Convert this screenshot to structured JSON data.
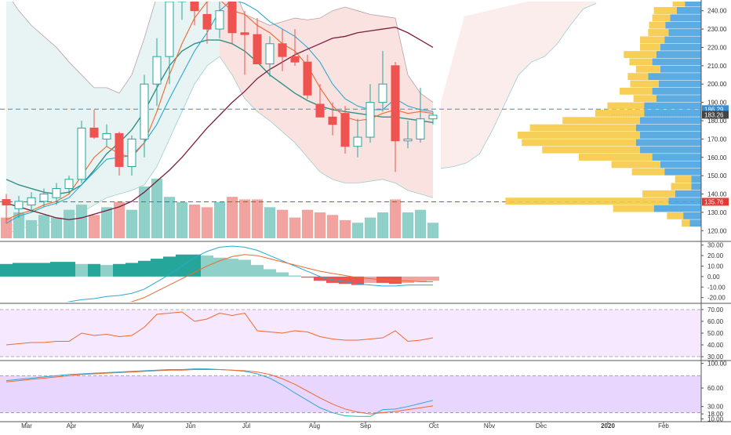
{
  "chart_data": {
    "type": "candlestick",
    "x_labels": [
      "Mar",
      "Apr",
      "May",
      "Jun",
      "Jul",
      "Aug",
      "Sep",
      "Oct",
      "Nov",
      "Dec",
      "2020",
      "Feb"
    ],
    "colors": {
      "up": "#26a69a",
      "down": "#ef5350",
      "up_volume": "#8fd1c8",
      "down_volume": "#f1a3a0",
      "ema_fast": "#f2682e",
      "ema_medium": "#29a9cf",
      "ema_slow": "#2f9188",
      "ema_long": "#7a1f3d",
      "cloud_fill": "#f8d8d6",
      "range_fill": "#e6f3f3",
      "volume_profile_up": "#4aa3df",
      "volume_profile_down": "#f6c945",
      "stoch_fill": "#e9d6ff",
      "rsi_fill": "#f5e8ff",
      "axis_text": "#333333",
      "price_label_blue": "#3d8ccf",
      "price_label_gray": "#444444",
      "price_label_red": "#e53935"
    },
    "price_panel": {
      "ylim": [
        115,
        245
      ],
      "ticks": [
        "120.00",
        "130.00",
        "140.00",
        "150.00",
        "160.00",
        "170.00",
        "180.00",
        "190.00",
        "200.00",
        "210.00",
        "220.00",
        "230.00",
        "240.00"
      ],
      "price_labels": [
        "186.29",
        "183.26",
        "135.76"
      ],
      "price_values": [
        186.29,
        183.26,
        135.76
      ],
      "candles": [
        {
          "o": 137,
          "h": 140,
          "l": 124,
          "c": 134
        },
        {
          "o": 132,
          "h": 139,
          "l": 127,
          "c": 136
        },
        {
          "o": 134,
          "h": 141,
          "l": 130,
          "c": 138
        },
        {
          "o": 136,
          "h": 143,
          "l": 133,
          "c": 140
        },
        {
          "o": 138,
          "h": 146,
          "l": 134,
          "c": 143
        },
        {
          "o": 143,
          "h": 150,
          "l": 140,
          "c": 148
        },
        {
          "o": 148,
          "h": 180,
          "l": 146,
          "c": 176
        },
        {
          "o": 176,
          "h": 186,
          "l": 170,
          "c": 171
        },
        {
          "o": 170,
          "h": 178,
          "l": 166,
          "c": 173
        },
        {
          "o": 173,
          "h": 174,
          "l": 150,
          "c": 155
        },
        {
          "o": 155,
          "h": 172,
          "l": 150,
          "c": 170
        },
        {
          "o": 170,
          "h": 205,
          "l": 160,
          "c": 200
        },
        {
          "o": 200,
          "h": 225,
          "l": 188,
          "c": 215
        },
        {
          "o": 215,
          "h": 250,
          "l": 200,
          "c": 245
        },
        {
          "o": 245,
          "h": 252,
          "l": 235,
          "c": 250
        },
        {
          "o": 250,
          "h": 255,
          "l": 232,
          "c": 240
        },
        {
          "o": 238,
          "h": 250,
          "l": 222,
          "c": 230
        },
        {
          "o": 230,
          "h": 245,
          "l": 225,
          "c": 240
        },
        {
          "o": 248,
          "h": 252,
          "l": 222,
          "c": 228
        },
        {
          "o": 228,
          "h": 240,
          "l": 205,
          "c": 227
        },
        {
          "o": 227,
          "h": 236,
          "l": 212,
          "c": 211
        },
        {
          "o": 211,
          "h": 226,
          "l": 204,
          "c": 222
        },
        {
          "o": 222,
          "h": 230,
          "l": 207,
          "c": 215
        },
        {
          "o": 215,
          "h": 230,
          "l": 210,
          "c": 212
        },
        {
          "o": 212,
          "h": 216,
          "l": 192,
          "c": 194
        },
        {
          "o": 189,
          "h": 200,
          "l": 182,
          "c": 182
        },
        {
          "o": 182,
          "h": 190,
          "l": 172,
          "c": 178
        },
        {
          "o": 184,
          "h": 188,
          "l": 162,
          "c": 166
        },
        {
          "o": 166,
          "h": 181,
          "l": 160,
          "c": 171
        },
        {
          "o": 171,
          "h": 200,
          "l": 168,
          "c": 190
        },
        {
          "o": 190,
          "h": 218,
          "l": 185,
          "c": 200
        },
        {
          "o": 210,
          "h": 212,
          "l": 152,
          "c": 169
        },
        {
          "o": 169,
          "h": 180,
          "l": 165,
          "c": 170
        },
        {
          "o": 170,
          "h": 198,
          "l": 168,
          "c": 181
        },
        {
          "o": 181,
          "h": 185,
          "l": 178,
          "c": 183
        }
      ],
      "volume": [
        8,
        10,
        7,
        9,
        8,
        11,
        13,
        9,
        12,
        14,
        11,
        20,
        23,
        16,
        14,
        13,
        12,
        14,
        16,
        15,
        15,
        12,
        11,
        8,
        11,
        10,
        9,
        7,
        6,
        8,
        10,
        15,
        10,
        11,
        6
      ],
      "ema_fast": [
        126,
        129,
        131,
        134,
        136,
        140,
        150,
        160,
        166,
        162,
        160,
        168,
        185,
        205,
        222,
        236,
        245,
        246,
        240,
        238,
        232,
        228,
        222,
        218,
        210,
        198,
        188,
        182,
        180,
        181,
        184,
        186,
        184,
        185,
        184
      ],
      "ema_medium": [
        124,
        128,
        130,
        133,
        135,
        138,
        145,
        152,
        159,
        160,
        161,
        168,
        178,
        192,
        205,
        218,
        228,
        240,
        246,
        244,
        240,
        234,
        230,
        226,
        220,
        212,
        200,
        192,
        188,
        186,
        186,
        192,
        188,
        186,
        185
      ],
      "ema_slow": [
        148,
        145,
        143,
        141,
        140,
        141,
        145,
        153,
        162,
        168,
        175,
        185,
        198,
        210,
        218,
        222,
        224,
        224,
        222,
        218,
        212,
        205,
        200,
        195,
        191,
        188,
        186,
        185,
        184,
        183,
        182,
        182,
        181,
        180,
        179
      ],
      "ema_long": [
        135,
        133,
        131,
        129,
        127,
        126,
        127,
        129,
        131,
        133,
        136,
        141,
        147,
        153,
        160,
        168,
        176,
        183,
        190,
        196,
        203,
        208,
        212,
        216,
        219,
        222,
        225,
        226,
        228,
        229,
        230,
        231,
        228,
        224,
        220
      ],
      "upper_band": [
        250,
        240,
        232,
        226,
        220,
        212,
        205,
        198,
        198,
        195,
        205,
        225,
        248,
        262,
        268,
        270,
        270,
        266,
        255,
        238,
        235,
        232,
        234,
        236,
        235,
        236,
        240,
        242,
        240,
        238,
        237,
        236,
        205,
        195,
        190
      ],
      "lower_band": [
        118,
        121,
        122,
        124,
        125,
        128,
        130,
        134,
        138,
        140,
        142,
        145,
        155,
        170,
        185,
        200,
        210,
        215,
        205,
        192,
        185,
        180,
        174,
        168,
        160,
        152,
        148,
        146,
        146,
        147,
        148,
        146,
        142,
        140,
        138
      ],
      "cloud_top_future": [
        237,
        240,
        243,
        246,
        250,
        255,
        262
      ],
      "cloud_bottom_future": [
        154,
        155,
        157,
        162,
        175,
        190,
        205,
        212,
        215,
        222,
        232,
        241,
        244
      ]
    },
    "macd_panel": {
      "ylim": [
        -24,
        32
      ],
      "ticks": [
        "30.00",
        "20.00",
        "10.00",
        "0.00",
        "-10.00",
        "-20.00"
      ],
      "histogram": [
        12,
        13,
        13,
        13,
        14,
        14,
        12,
        12,
        11,
        12,
        13,
        15,
        17,
        19,
        21,
        21,
        20,
        18,
        17,
        16,
        11,
        7,
        4,
        1,
        -1,
        -4,
        -6,
        -7,
        -8,
        -6,
        -6,
        -7,
        -6,
        -5,
        -4
      ],
      "macd": [
        -35,
        -32,
        -30,
        -28,
        -26,
        -24,
        -22,
        -21,
        -19,
        -18,
        -16,
        -12,
        -5,
        2,
        10,
        18,
        24,
        28,
        29,
        28,
        25,
        20,
        15,
        10,
        5,
        0,
        -3,
        -5,
        -7,
        -8,
        -9,
        -9,
        -8,
        -8,
        -8
      ],
      "signal": [
        -48,
        -45,
        -42,
        -40,
        -37,
        -35,
        -32,
        -30,
        -28,
        -26,
        -24,
        -20,
        -14,
        -8,
        -2,
        4,
        10,
        15,
        19,
        21,
        20,
        17,
        14,
        11,
        8,
        5,
        3,
        1,
        -1,
        -2,
        -3,
        -4,
        -4,
        -5,
        -5
      ]
    },
    "rsi_panel": {
      "ylim": [
        28,
        74
      ],
      "ticks": [
        "70.00",
        "60.00",
        "50.00",
        "40.00",
        "30.00"
      ],
      "band": [
        30,
        70
      ],
      "values": [
        40,
        41,
        42,
        42,
        43,
        43,
        50,
        48,
        49,
        47,
        48,
        55,
        66,
        67,
        68,
        60,
        62,
        67,
        65,
        67,
        52,
        51,
        50,
        52,
        51,
        47,
        45,
        44,
        44,
        45,
        46,
        52,
        43,
        44,
        46
      ]
    },
    "stoch_panel": {
      "ylim": [
        8,
        102
      ],
      "ticks": [
        "100.00",
        "60.00",
        "30.00",
        "18.00",
        "10.00"
      ],
      "band": [
        20,
        80
      ],
      "k": [
        72,
        74,
        76,
        78,
        80,
        82,
        83,
        84,
        85,
        86,
        87,
        88,
        89,
        90,
        90,
        91,
        91,
        90,
        89,
        87,
        83,
        76,
        65,
        52,
        40,
        28,
        20,
        15,
        14,
        14,
        25,
        26,
        30,
        35,
        40
      ],
      "d": [
        70,
        72,
        74,
        76,
        78,
        80,
        82,
        83,
        84,
        85,
        86,
        87,
        88,
        89,
        89,
        90,
        90,
        90,
        89,
        88,
        86,
        82,
        75,
        66,
        55,
        44,
        34,
        26,
        21,
        18,
        20,
        22,
        25,
        28,
        31
      ]
    },
    "volume_profile": [
      {
        "price": 244,
        "up": 15,
        "down": 20
      },
      {
        "price": 240,
        "up": 28,
        "down": 30
      },
      {
        "price": 236,
        "up": 22,
        "down": 38
      },
      {
        "price": 232,
        "up": 20,
        "down": 44
      },
      {
        "price": 228,
        "up": 25,
        "down": 40
      },
      {
        "price": 224,
        "up": 30,
        "down": 45
      },
      {
        "price": 220,
        "up": 25,
        "down": 50
      },
      {
        "price": 216,
        "up": 40,
        "down": 55
      },
      {
        "price": 212,
        "up": 28,
        "down": 60
      },
      {
        "price": 208,
        "up": 30,
        "down": 50
      },
      {
        "price": 204,
        "up": 25,
        "down": 65
      },
      {
        "price": 200,
        "up": 35,
        "down": 52
      },
      {
        "price": 196,
        "up": 40,
        "down": 60
      },
      {
        "price": 192,
        "up": 28,
        "down": 55
      },
      {
        "price": 188,
        "up": 45,
        "down": 70
      },
      {
        "price": 184,
        "up": 60,
        "down": 70
      },
      {
        "price": 180,
        "up": 95,
        "down": 75
      },
      {
        "price": 176,
        "up": 130,
        "down": 80
      },
      {
        "price": 172,
        "up": 150,
        "down": 75
      },
      {
        "price": 168,
        "up": 140,
        "down": 80
      },
      {
        "price": 164,
        "up": 120,
        "down": 75
      },
      {
        "price": 160,
        "up": 90,
        "down": 60
      },
      {
        "price": 156,
        "up": 60,
        "down": 50
      },
      {
        "price": 152,
        "up": 40,
        "down": 45
      },
      {
        "price": 148,
        "up": 20,
        "down": 12
      },
      {
        "price": 144,
        "up": 25,
        "down": 12
      },
      {
        "price": 140,
        "up": 40,
        "down": 32
      },
      {
        "price": 136,
        "up": 200,
        "down": 40
      },
      {
        "price": 132,
        "up": 50,
        "down": 58
      },
      {
        "price": 128,
        "up": 20,
        "down": 22
      },
      {
        "price": 124,
        "up": 10,
        "down": 14
      }
    ]
  }
}
